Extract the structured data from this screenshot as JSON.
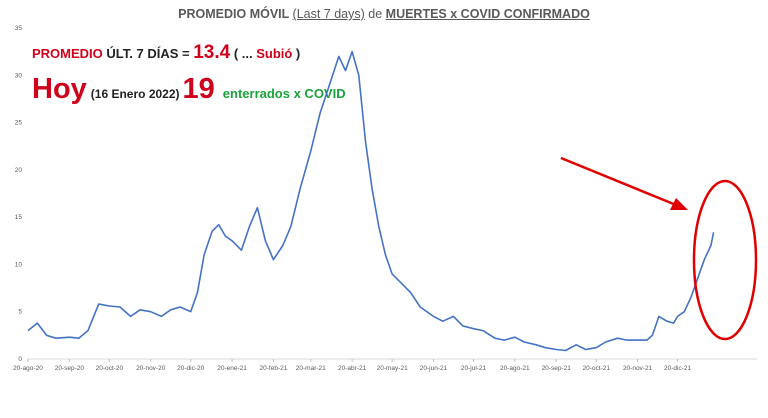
{
  "header": {
    "title_part1": "PROMEDIO MÓVIL ",
    "title_part2": "(Last 7 days)",
    "title_part3": " de ",
    "title_part4": "MUERTES x COVID CONFIRMADO"
  },
  "stat1": {
    "label": "PROMEDIO",
    "middle": " ÚLT. 7 DÍAS = ",
    "value": "13.4",
    "paren_open": " ( ... ",
    "change": "Subió",
    "paren_close": " )"
  },
  "stat2": {
    "hoy": "Hoy",
    "date": "(16 Enero 2022)",
    "count": "19",
    "caption": "enterrados x COVID"
  },
  "colors": {
    "line": "#4472c4",
    "highlight": "#e00000"
  },
  "chart_data": {
    "type": "line",
    "title": "PROMEDIO MÓVIL (Last 7 days) de MUERTES x COVID CONFIRMADO",
    "ylim": [
      0,
      35
    ],
    "yticks": [
      "0",
      "5",
      "10",
      "15",
      "20",
      "25",
      "30",
      "35"
    ],
    "grid": false,
    "xticks": [
      "20-ago-20",
      "20-sep-20",
      "20-oct-20",
      "20-nov-20",
      "20-dic-20",
      "20-ene-21",
      "20-feb-21",
      "20-mar-21",
      "20-abr-21",
      "20-may-21",
      "20-jun-21",
      "20-jul-21",
      "20-ago-21",
      "20-sep-21",
      "20-oct-21",
      "20-nov-21",
      "20-dic-21"
    ],
    "series": [
      {
        "x": [
          "20-ago-20",
          "27-ago-20",
          "3-sep-20",
          "10-sep-20",
          "20-sep-20",
          "27-sep-20",
          "4-oct-20",
          "12-oct-20",
          "20-oct-20",
          "28-oct-20",
          "5-nov-20",
          "12-nov-20",
          "20-nov-20",
          "28-nov-20",
          "5-dic-20",
          "12-dic-20",
          "20-dic-20",
          "25-dic-20",
          "30-dic-20",
          "5-ene-21",
          "10-ene-21",
          "15-ene-21",
          "20-ene-21",
          "27-ene-21",
          "2-feb-21",
          "8-feb-21",
          "14-feb-21",
          "20-feb-21",
          "27-feb-21",
          "5-mar-21",
          "12-mar-21",
          "20-mar-21",
          "27-mar-21",
          "3-abr-21",
          "10-abr-21",
          "15-abr-21",
          "20-abr-21",
          "25-abr-21",
          "30-abr-21",
          "5-may-21",
          "10-may-21",
          "15-may-21",
          "20-may-21",
          "27-may-21",
          "3-jun-21",
          "10-jun-21",
          "20-jun-21",
          "27-jun-21",
          "5-jul-21",
          "12-jul-21",
          "20-jul-21",
          "27-jul-21",
          "5-ago-21",
          "12-ago-21",
          "20-ago-21",
          "27-ago-21",
          "5-sep-21",
          "12-sep-21",
          "20-sep-21",
          "27-sep-21",
          "5-oct-21",
          "12-oct-21",
          "20-oct-21",
          "27-oct-21",
          "5-nov-21",
          "12-nov-21",
          "20-nov-21",
          "27-nov-21",
          "1-dic-21",
          "6-dic-21",
          "12-dic-21",
          "17-dic-21",
          "20-dic-21",
          "25-dic-21",
          "30-dic-21",
          "4-ene-22",
          "9-ene-22",
          "14-ene-22",
          "16-ene-22"
        ],
        "values": [
          3,
          3.8,
          2.5,
          2.2,
          2.3,
          2.2,
          3.0,
          5.8,
          5.6,
          5.5,
          4.5,
          5.2,
          5.0,
          4.5,
          5.2,
          5.5,
          5.0,
          7.0,
          11.0,
          13.5,
          14.2,
          13.0,
          12.5,
          11.5,
          14.0,
          16.0,
          12.5,
          10.5,
          12.0,
          14.0,
          18.0,
          22.0,
          26.0,
          29.0,
          32.0,
          30.5,
          32.5,
          30.0,
          23.0,
          18.0,
          14.0,
          11.0,
          9.0,
          8.0,
          7.0,
          5.5,
          4.5,
          4.0,
          4.5,
          3.5,
          3.2,
          3.0,
          2.2,
          2.0,
          2.3,
          1.8,
          1.5,
          1.2,
          1.0,
          0.9,
          1.5,
          1.0,
          1.2,
          1.8,
          2.2,
          2.0,
          2.0,
          2.0,
          2.5,
          4.5,
          4.0,
          3.8,
          4.5,
          5.0,
          6.5,
          8.5,
          10.5,
          12.0,
          13.4
        ]
      }
    ]
  }
}
